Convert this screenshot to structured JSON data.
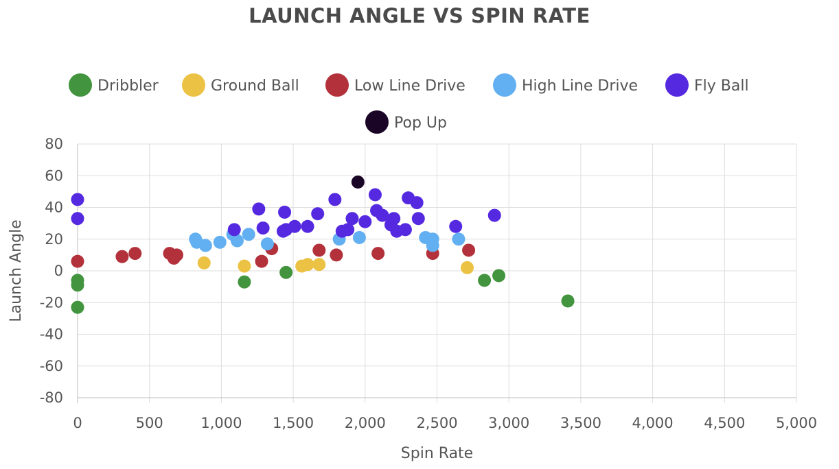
{
  "chart_data": {
    "type": "scatter",
    "title": "LAUNCH ANGLE VS SPIN RATE",
    "xlabel": "Spin Rate",
    "ylabel": "Launch Angle",
    "xlim": [
      0,
      5000
    ],
    "ylim": [
      -80,
      80
    ],
    "x_ticks": [
      "0",
      "500",
      "1,000",
      "1,500",
      "2,000",
      "2,500",
      "3,000",
      "3,500",
      "4,000",
      "4,500",
      "5,000"
    ],
    "y_ticks": [
      "80",
      "60",
      "40",
      "20",
      "0",
      "-20",
      "-40",
      "-60",
      "-80"
    ],
    "grid": true,
    "legend_position": "top",
    "series": [
      {
        "name": "Dribbler",
        "color": "#43943f",
        "points": [
          [
            0,
            -6
          ],
          [
            0,
            -9
          ],
          [
            0,
            -23
          ],
          [
            1160,
            -7
          ],
          [
            1450,
            -1
          ],
          [
            2830,
            -6
          ],
          [
            2930,
            -3
          ],
          [
            3410,
            -19
          ]
        ]
      },
      {
        "name": "Ground Ball",
        "color": "#ecc244",
        "points": [
          [
            880,
            5
          ],
          [
            1160,
            3
          ],
          [
            1560,
            3
          ],
          [
            1600,
            4
          ],
          [
            1680,
            4
          ],
          [
            2710,
            2
          ]
        ]
      },
      {
        "name": "Low Line Drive",
        "color": "#b3313a",
        "points": [
          [
            0,
            6
          ],
          [
            310,
            9
          ],
          [
            400,
            11
          ],
          [
            640,
            11
          ],
          [
            670,
            8
          ],
          [
            690,
            10
          ],
          [
            1280,
            6
          ],
          [
            1350,
            14
          ],
          [
            1680,
            13
          ],
          [
            1800,
            10
          ],
          [
            2090,
            11
          ],
          [
            2470,
            11
          ],
          [
            2720,
            13
          ]
        ]
      },
      {
        "name": "High Line Drive",
        "color": "#62aff1",
        "points": [
          [
            820,
            20
          ],
          [
            830,
            18
          ],
          [
            890,
            16
          ],
          [
            990,
            18
          ],
          [
            1080,
            23
          ],
          [
            1110,
            19
          ],
          [
            1190,
            23
          ],
          [
            1320,
            17
          ],
          [
            1820,
            20
          ],
          [
            1960,
            21
          ],
          [
            2420,
            21
          ],
          [
            2470,
            20
          ],
          [
            2470,
            16
          ],
          [
            2650,
            20
          ]
        ]
      },
      {
        "name": "Fly Ball",
        "color": "#5529e0",
        "points": [
          [
            0,
            45
          ],
          [
            0,
            33
          ],
          [
            1090,
            26
          ],
          [
            1260,
            39
          ],
          [
            1290,
            27
          ],
          [
            1430,
            25
          ],
          [
            1440,
            37
          ],
          [
            1450,
            26
          ],
          [
            1510,
            28
          ],
          [
            1600,
            28
          ],
          [
            1670,
            36
          ],
          [
            1790,
            45
          ],
          [
            1840,
            25
          ],
          [
            1880,
            26
          ],
          [
            1910,
            33
          ],
          [
            2000,
            31
          ],
          [
            2070,
            48
          ],
          [
            2080,
            38
          ],
          [
            2120,
            35
          ],
          [
            2180,
            29
          ],
          [
            2200,
            33
          ],
          [
            2220,
            25
          ],
          [
            2280,
            26
          ],
          [
            2300,
            46
          ],
          [
            2360,
            43
          ],
          [
            2370,
            33
          ],
          [
            2630,
            28
          ],
          [
            2900,
            35
          ]
        ]
      },
      {
        "name": "Pop Up",
        "color": "#1b0527",
        "points": [
          [
            1950,
            56
          ]
        ]
      }
    ]
  }
}
